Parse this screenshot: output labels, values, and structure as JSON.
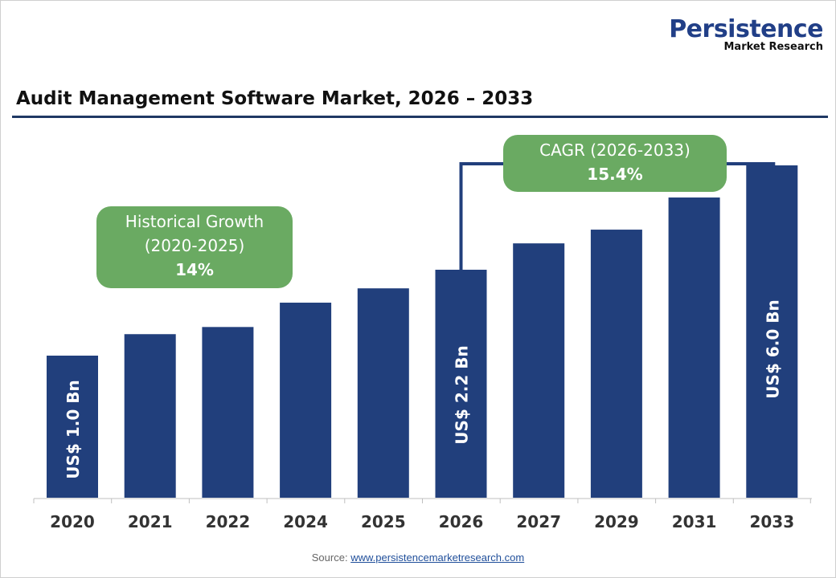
{
  "logo": {
    "line1": "Persistence",
    "line2": "Market Research"
  },
  "chart_data": {
    "type": "bar",
    "title": "Audit Management Software Market, 2026 – 2033",
    "categories": [
      "2020",
      "2021",
      "2022",
      "2024",
      "2025",
      "2026",
      "2027",
      "2029",
      "2031",
      "2033"
    ],
    "values": [
      1.0,
      1.3,
      1.4,
      1.74,
      1.94,
      2.2,
      3.16,
      3.66,
      4.83,
      6.0
    ],
    "data_labels": {
      "2020": "US$ 1.0 Bn",
      "2026": "US$ 2.2 Bn",
      "2033": "US$ 6.0 Bn"
    },
    "unit": "US$ Bn",
    "bar_color": "#213f7c",
    "grid": false,
    "annotations": [
      {
        "label": "Historical Growth",
        "period": "(2020-2025)",
        "value": "14%"
      },
      {
        "label": "CAGR (2026-2033)",
        "value": "15.4%"
      }
    ],
    "annotation_color": "#6aaa62"
  },
  "source": {
    "label": "Source: ",
    "link": "www.persistencemarketresearch.com"
  }
}
